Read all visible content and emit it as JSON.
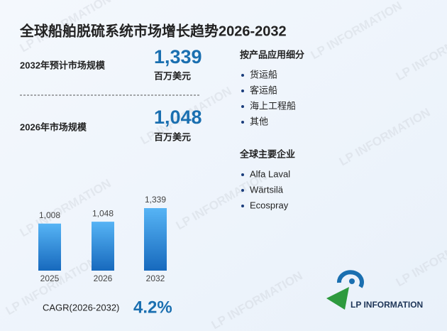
{
  "title": "全球船舶脱硫系统市场增长趋势2026-2032",
  "stats": [
    {
      "label": "2032年预计市场规模",
      "value": "1,339",
      "unit": "百万美元"
    },
    {
      "label": "2026年市场规模",
      "value": "1,048",
      "unit": "百万美元"
    }
  ],
  "segments": {
    "title": "按产品应用细分",
    "items": [
      "货运船",
      "客运船",
      "海上工程船",
      "其他"
    ]
  },
  "companies": {
    "title": "全球主要企业",
    "items": [
      "Alfa Laval",
      "Wärtsilä",
      "Ecospray"
    ]
  },
  "cagr": {
    "label": "CAGR(2026-2032)",
    "value": "4.2%"
  },
  "logo": "LP INFORMATION",
  "watermark": "LP INFORMATION",
  "chart_data": {
    "type": "bar",
    "categories": [
      "2025",
      "2026",
      "2032"
    ],
    "values": [
      1008,
      1048,
      1339
    ],
    "value_labels": [
      "1,008",
      "1,048",
      "1,339"
    ],
    "color": "#2a86d8"
  }
}
